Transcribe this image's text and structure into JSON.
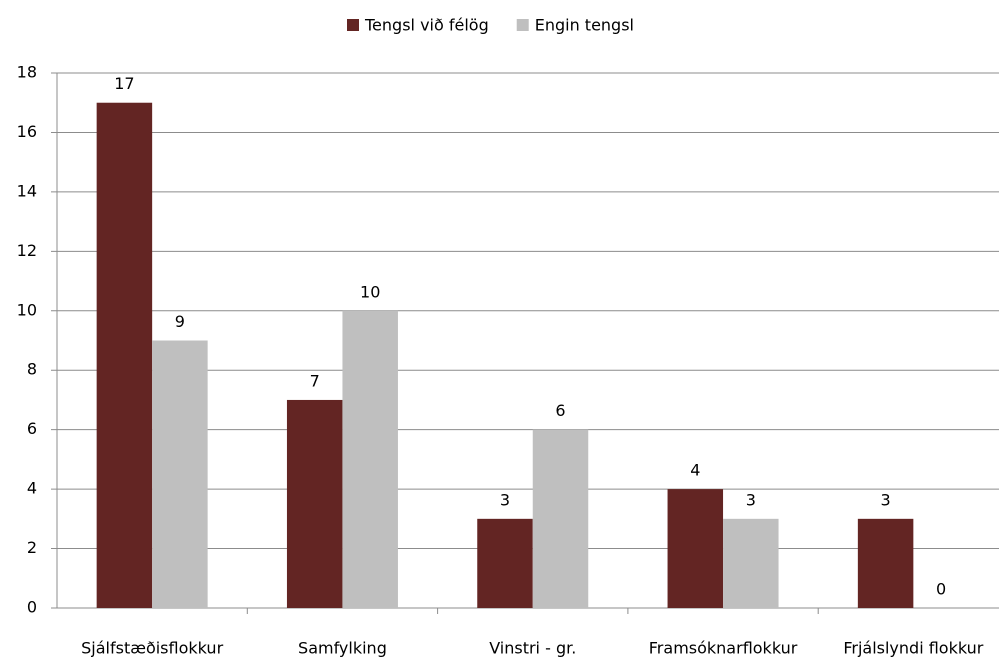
{
  "chart_data": {
    "type": "bar",
    "categories": [
      "Sjálfstæðisflokkur",
      "Samfylking",
      "Vinstri - gr.",
      "Framsóknarflokkur",
      "Frjálslyndi flokkur"
    ],
    "series": [
      {
        "name": "Tengsl við félög",
        "color": "#632523",
        "values": [
          17,
          7,
          3,
          4,
          3
        ]
      },
      {
        "name": "Engin tengsl",
        "color": "#bfbfbf",
        "values": [
          9,
          10,
          6,
          3,
          0
        ]
      }
    ],
    "ylim": [
      0,
      18
    ],
    "yticks": [
      0,
      2,
      4,
      6,
      8,
      10,
      12,
      14,
      16,
      18
    ],
    "grid": true,
    "legend": "top"
  }
}
